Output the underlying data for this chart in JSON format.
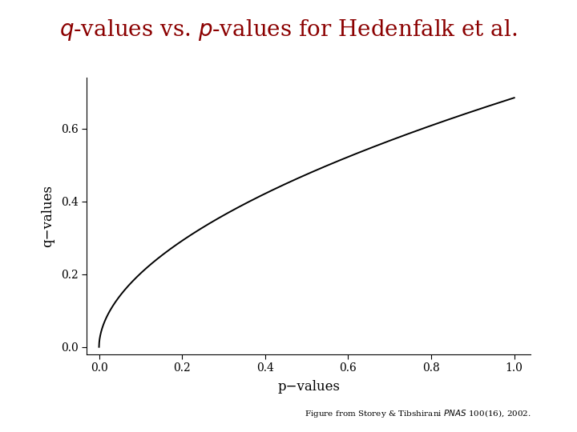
{
  "title_full": "$\\mathit{q}$-values vs. $\\mathit{p}$-values for Hedenfalk et al.",
  "xlabel": "p−values",
  "ylabel": "q−values",
  "xlim": [
    -0.03,
    1.04
  ],
  "ylim": [
    -0.02,
    0.74
  ],
  "xticks": [
    0.0,
    0.2,
    0.4,
    0.6,
    0.8,
    1.0
  ],
  "yticks": [
    0.0,
    0.2,
    0.4,
    0.6
  ],
  "curve_color": "#000000",
  "curve_linewidth": 1.4,
  "background_color": "#ffffff",
  "title_color": "#8B0000",
  "caption_color": "#000000",
  "caption_fontsize": 7.5,
  "title_fontsize": 20,
  "axis_label_fontsize": 12,
  "tick_fontsize": 10,
  "curve_exponent": 0.53,
  "curve_scale": 0.685,
  "curve_x_offset": 0.02,
  "figsize": [
    7.2,
    5.4
  ],
  "dpi": 100
}
